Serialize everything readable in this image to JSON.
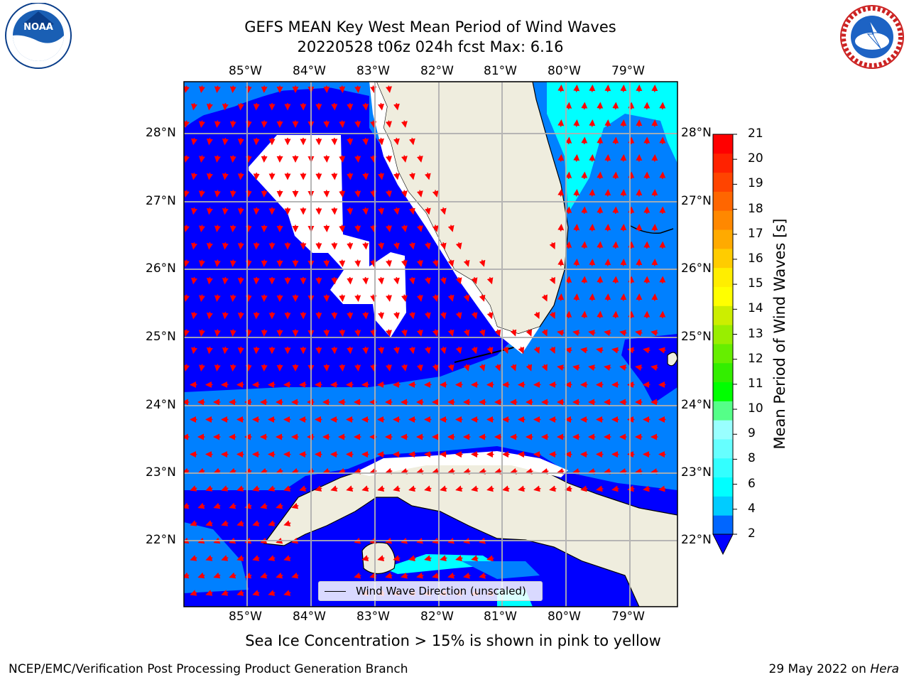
{
  "title": {
    "line1": "GEFS MEAN Key West Mean Period of Wind Waves",
    "line2": "20220528 t06z 024h fcst   Max: 6.16"
  },
  "map": {
    "lon_labels": [
      "85°W",
      "84°W",
      "83°W",
      "82°W",
      "81°W",
      "80°W",
      "79°W"
    ],
    "lat_labels": [
      "28°N",
      "27°N",
      "26°N",
      "25°N",
      "24°N",
      "23°N",
      "22°N"
    ],
    "legend_label": "Wind Wave Direction (unscaled)",
    "colors": {
      "ocean_deep": "#0000ff",
      "ocean_mid": "#0080ff",
      "land": "#efedde",
      "arrow": "#ff0000",
      "grid": "#b0b0b0"
    }
  },
  "colorbar": {
    "label": "Mean Period of Wind Waves [s]",
    "ticks": [
      "2",
      "4",
      "6",
      "8",
      "9",
      "10",
      "11",
      "12",
      "13",
      "14",
      "15",
      "16",
      "17",
      "18",
      "19",
      "20",
      "21"
    ],
    "colors": [
      "#0066ff",
      "#00ccff",
      "#00ffff",
      "#33ffff",
      "#66ffff",
      "#99ffff",
      "#55ff88",
      "#00ff00",
      "#33ee00",
      "#66ee00",
      "#99ee00",
      "#ccee00",
      "#ffff00",
      "#ffee00",
      "#ffcc00",
      "#ffaa00",
      "#ff8800",
      "#ff6600",
      "#ff4400",
      "#ff2200",
      "#ff0000"
    ]
  },
  "note": "Sea Ice Concentration > 15% is shown in pink to yellow",
  "footer": {
    "left": "NCEP/EMC/Verification Post Processing Product Generation Branch",
    "right_prefix": "29 May 2022 on ",
    "right_host": "Hera"
  },
  "logos": {
    "noaa_text": "NOAA",
    "nws_text": "NATIONAL WEATHER SERVICE"
  }
}
